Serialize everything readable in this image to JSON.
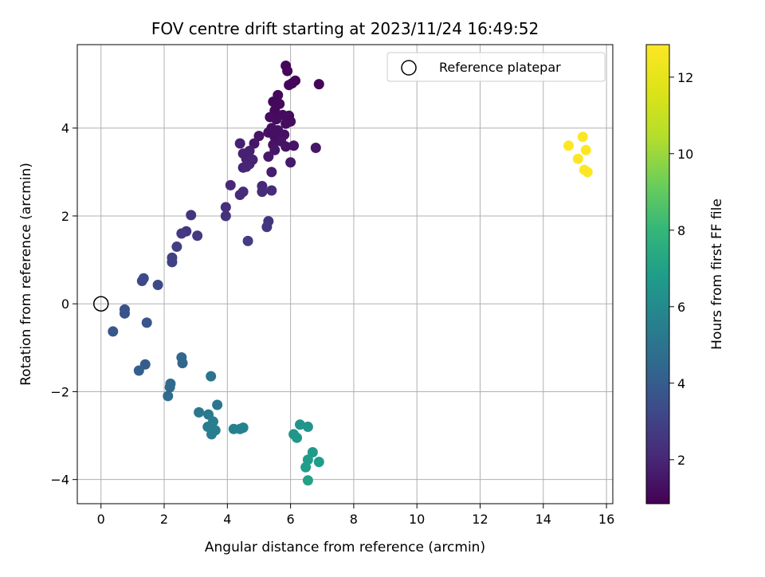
{
  "chart_data": {
    "type": "scatter",
    "title": "FOV centre drift starting at 2023/11/24 16:49:52",
    "xlabel": "Angular distance from reference (arcmin)",
    "ylabel": "Rotation from reference (arcmin)",
    "xlim": [
      -0.75,
      16.2
    ],
    "ylim": [
      -4.55,
      5.9
    ],
    "xticks": [
      0,
      2,
      4,
      6,
      8,
      10,
      12,
      14,
      16
    ],
    "yticks": [
      -4,
      -2,
      0,
      2,
      4
    ],
    "grid": true,
    "legend": {
      "placement": "top-right",
      "entries": [
        "Reference platepar"
      ]
    },
    "reference_point": {
      "x": 0,
      "y": 0
    },
    "colorbar": {
      "label": "Hours from first FF file",
      "range": [
        0.85,
        12.85
      ],
      "ticks": [
        2,
        4,
        6,
        8,
        10,
        12
      ],
      "colormap": "viridis"
    },
    "points": [
      {
        "x": 5.85,
        "y": 5.42,
        "c": 1.0
      },
      {
        "x": 5.9,
        "y": 5.3,
        "c": 1.0
      },
      {
        "x": 6.15,
        "y": 5.08,
        "c": 1.0
      },
      {
        "x": 6.05,
        "y": 5.02,
        "c": 1.0
      },
      {
        "x": 5.95,
        "y": 4.98,
        "c": 1.0
      },
      {
        "x": 6.9,
        "y": 5.0,
        "c": 1.0
      },
      {
        "x": 5.6,
        "y": 4.75,
        "c": 1.1
      },
      {
        "x": 5.45,
        "y": 4.6,
        "c": 1.1
      },
      {
        "x": 5.65,
        "y": 4.55,
        "c": 1.1
      },
      {
        "x": 5.5,
        "y": 4.4,
        "c": 1.1
      },
      {
        "x": 5.35,
        "y": 4.25,
        "c": 1.2
      },
      {
        "x": 5.75,
        "y": 4.3,
        "c": 1.2
      },
      {
        "x": 5.95,
        "y": 4.28,
        "c": 1.2
      },
      {
        "x": 5.55,
        "y": 4.2,
        "c": 1.2
      },
      {
        "x": 6.0,
        "y": 4.15,
        "c": 1.2
      },
      {
        "x": 5.85,
        "y": 4.1,
        "c": 1.2
      },
      {
        "x": 5.4,
        "y": 4.0,
        "c": 1.3
      },
      {
        "x": 5.6,
        "y": 3.95,
        "c": 1.3
      },
      {
        "x": 5.3,
        "y": 3.9,
        "c": 1.3
      },
      {
        "x": 5.8,
        "y": 3.85,
        "c": 1.3
      },
      {
        "x": 5.5,
        "y": 3.8,
        "c": 1.3
      },
      {
        "x": 5.0,
        "y": 3.82,
        "c": 1.4
      },
      {
        "x": 5.7,
        "y": 3.7,
        "c": 1.4
      },
      {
        "x": 5.45,
        "y": 3.62,
        "c": 1.4
      },
      {
        "x": 6.1,
        "y": 3.6,
        "c": 1.4
      },
      {
        "x": 5.85,
        "y": 3.58,
        "c": 1.4
      },
      {
        "x": 5.5,
        "y": 3.5,
        "c": 1.5
      },
      {
        "x": 4.85,
        "y": 3.65,
        "c": 1.5
      },
      {
        "x": 6.8,
        "y": 3.55,
        "c": 1.5
      },
      {
        "x": 5.3,
        "y": 3.35,
        "c": 1.6
      },
      {
        "x": 6.0,
        "y": 3.22,
        "c": 1.6
      },
      {
        "x": 5.4,
        "y": 3.0,
        "c": 1.7
      },
      {
        "x": 4.4,
        "y": 3.65,
        "c": 1.8
      },
      {
        "x": 4.5,
        "y": 3.42,
        "c": 1.8
      },
      {
        "x": 4.7,
        "y": 3.48,
        "c": 1.8
      },
      {
        "x": 4.6,
        "y": 3.3,
        "c": 1.8
      },
      {
        "x": 4.8,
        "y": 3.28,
        "c": 1.9
      },
      {
        "x": 4.7,
        "y": 3.18,
        "c": 1.9
      },
      {
        "x": 4.5,
        "y": 3.1,
        "c": 1.9
      },
      {
        "x": 4.6,
        "y": 3.12,
        "c": 2.0
      },
      {
        "x": 4.1,
        "y": 2.7,
        "c": 2.1
      },
      {
        "x": 5.1,
        "y": 2.68,
        "c": 2.1
      },
      {
        "x": 4.5,
        "y": 2.55,
        "c": 2.2
      },
      {
        "x": 4.4,
        "y": 2.48,
        "c": 2.2
      },
      {
        "x": 5.1,
        "y": 2.55,
        "c": 2.2
      },
      {
        "x": 5.4,
        "y": 2.58,
        "c": 2.2
      },
      {
        "x": 3.95,
        "y": 2.2,
        "c": 2.3
      },
      {
        "x": 3.95,
        "y": 2.0,
        "c": 2.4
      },
      {
        "x": 2.85,
        "y": 2.02,
        "c": 2.5
      },
      {
        "x": 5.3,
        "y": 1.88,
        "c": 2.5
      },
      {
        "x": 5.25,
        "y": 1.75,
        "c": 2.6
      },
      {
        "x": 2.7,
        "y": 1.65,
        "c": 2.6
      },
      {
        "x": 2.55,
        "y": 1.6,
        "c": 2.7
      },
      {
        "x": 3.05,
        "y": 1.55,
        "c": 2.7
      },
      {
        "x": 4.65,
        "y": 1.43,
        "c": 2.8
      },
      {
        "x": 2.4,
        "y": 1.3,
        "c": 2.9
      },
      {
        "x": 2.25,
        "y": 1.05,
        "c": 3.0
      },
      {
        "x": 2.25,
        "y": 0.95,
        "c": 3.0
      },
      {
        "x": 1.35,
        "y": 0.58,
        "c": 3.3
      },
      {
        "x": 1.3,
        "y": 0.52,
        "c": 3.3
      },
      {
        "x": 1.8,
        "y": 0.43,
        "c": 3.3
      },
      {
        "x": 0.75,
        "y": -0.13,
        "c": 3.6
      },
      {
        "x": 0.75,
        "y": -0.22,
        "c": 3.6
      },
      {
        "x": 1.45,
        "y": -0.43,
        "c": 3.7
      },
      {
        "x": 0.38,
        "y": -0.63,
        "c": 3.8
      },
      {
        "x": 1.4,
        "y": -1.38,
        "c": 4.0
      },
      {
        "x": 1.2,
        "y": -1.52,
        "c": 4.1
      },
      {
        "x": 2.55,
        "y": -1.22,
        "c": 4.4
      },
      {
        "x": 2.58,
        "y": -1.35,
        "c": 4.4
      },
      {
        "x": 2.2,
        "y": -1.82,
        "c": 4.6
      },
      {
        "x": 2.18,
        "y": -1.9,
        "c": 4.6
      },
      {
        "x": 2.12,
        "y": -2.1,
        "c": 4.7
      },
      {
        "x": 3.48,
        "y": -1.65,
        "c": 5.0
      },
      {
        "x": 3.68,
        "y": -2.3,
        "c": 5.1
      },
      {
        "x": 3.1,
        "y": -2.47,
        "c": 5.2
      },
      {
        "x": 3.4,
        "y": -2.52,
        "c": 5.3
      },
      {
        "x": 3.55,
        "y": -2.68,
        "c": 5.4
      },
      {
        "x": 3.38,
        "y": -2.8,
        "c": 5.4
      },
      {
        "x": 3.62,
        "y": -2.88,
        "c": 5.5
      },
      {
        "x": 3.5,
        "y": -2.97,
        "c": 5.5
      },
      {
        "x": 4.2,
        "y": -2.85,
        "c": 5.6
      },
      {
        "x": 4.4,
        "y": -2.85,
        "c": 5.6
      },
      {
        "x": 4.5,
        "y": -2.82,
        "c": 5.7
      },
      {
        "x": 6.3,
        "y": -2.75,
        "c": 6.4
      },
      {
        "x": 6.55,
        "y": -2.8,
        "c": 6.4
      },
      {
        "x": 6.1,
        "y": -2.97,
        "c": 6.5
      },
      {
        "x": 6.2,
        "y": -3.05,
        "c": 6.5
      },
      {
        "x": 6.7,
        "y": -3.38,
        "c": 6.7
      },
      {
        "x": 6.55,
        "y": -3.55,
        "c": 6.8
      },
      {
        "x": 6.9,
        "y": -3.6,
        "c": 6.8
      },
      {
        "x": 6.48,
        "y": -3.72,
        "c": 6.9
      },
      {
        "x": 6.55,
        "y": -4.02,
        "c": 7.0
      },
      {
        "x": 14.8,
        "y": 3.6,
        "c": 12.85
      },
      {
        "x": 15.25,
        "y": 3.8,
        "c": 12.85
      },
      {
        "x": 15.35,
        "y": 3.5,
        "c": 12.85
      },
      {
        "x": 15.1,
        "y": 3.3,
        "c": 12.85
      },
      {
        "x": 15.3,
        "y": 3.05,
        "c": 12.85
      },
      {
        "x": 15.4,
        "y": 3.0,
        "c": 12.85
      }
    ]
  }
}
